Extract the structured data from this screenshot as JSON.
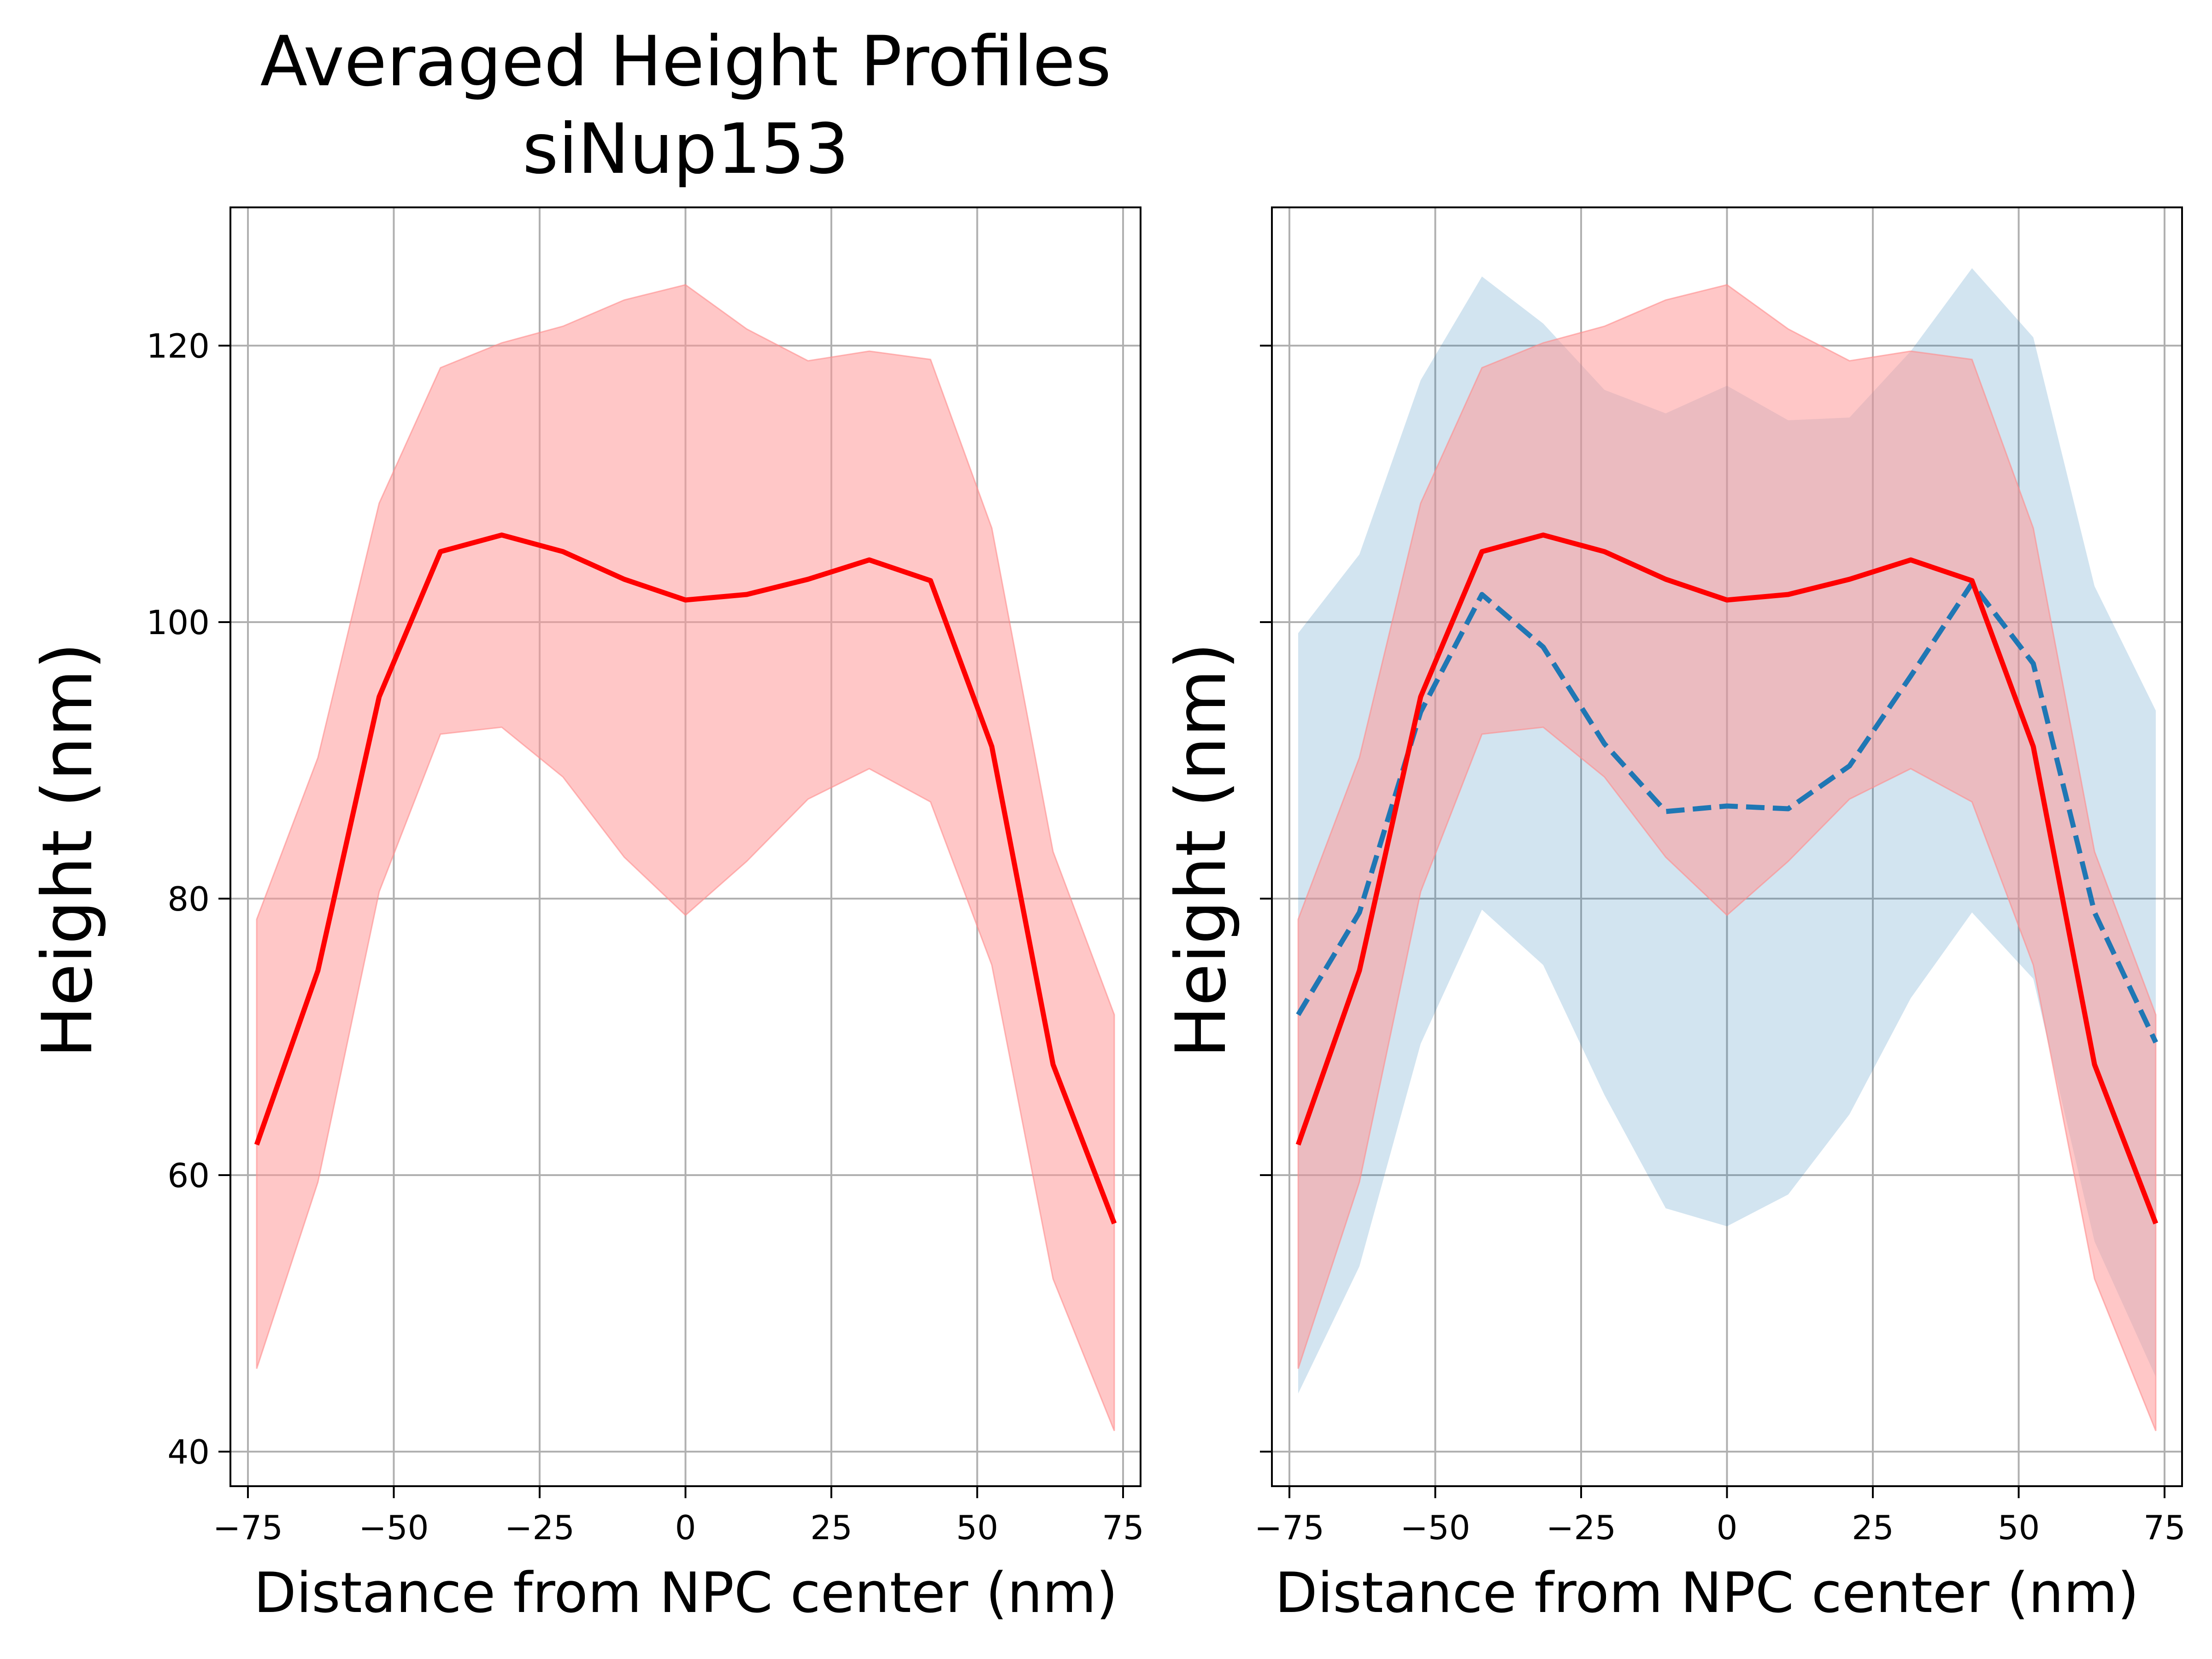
{
  "chart_data": [
    {
      "type": "line",
      "title": "Averaged Height Profiles\nsiNup153",
      "title_lines": [
        "Averaged Height Profiles",
        "siNup153"
      ],
      "xlabel": "Distance from NPC center (nm)",
      "ylabel": "Height (nm)",
      "xlim": [
        -78,
        78
      ],
      "ylim": [
        37.5,
        130
      ],
      "xticks": [
        -75,
        -50,
        -25,
        0,
        25,
        50,
        75
      ],
      "xtick_labels": [
        "−75",
        "−50",
        "−25",
        "0",
        "25",
        "50",
        "75"
      ],
      "yticks": [
        40,
        60,
        80,
        100,
        120
      ],
      "ytick_labels": [
        "40",
        "60",
        "80",
        "100",
        "120"
      ],
      "grid": true,
      "x": [
        -73.5,
        -63,
        -52.5,
        -42,
        -31.5,
        -21,
        -10.5,
        0,
        10.5,
        21,
        31.5,
        42,
        52.5,
        63,
        73.5
      ],
      "series": [
        {
          "color": "#ff0000",
          "style": "solid",
          "values": [
            62.2,
            74.8,
            94.6,
            105.1,
            106.3,
            105.1,
            103.1,
            101.6,
            102.0,
            103.1,
            104.5,
            103.0,
            91.0,
            68.0,
            56.5
          ],
          "band_lower": [
            46.0,
            59.5,
            80.5,
            91.9,
            92.4,
            88.8,
            83.0,
            78.8,
            82.7,
            87.2,
            89.4,
            87.0,
            75.2,
            52.5,
            41.5
          ],
          "band_upper": [
            78.5,
            90.2,
            108.6,
            118.4,
            120.2,
            121.4,
            123.3,
            124.4,
            121.2,
            118.9,
            119.6,
            119.0,
            106.8,
            83.4,
            71.6
          ],
          "band_color": "#ff9999"
        }
      ]
    },
    {
      "type": "line",
      "xlabel": "Distance from NPC center (nm)",
      "ylabel": "Height (nm)",
      "xlim": [
        -78,
        78
      ],
      "ylim": [
        37.5,
        130
      ],
      "xticks": [
        -75,
        -50,
        -25,
        0,
        25,
        50,
        75
      ],
      "xtick_labels": [
        "−75",
        "−50",
        "−25",
        "0",
        "25",
        "50",
        "75"
      ],
      "yticks": [
        40,
        60,
        80,
        100,
        120
      ],
      "ytick_labels": [
        "",
        "",
        "",
        "",
        ""
      ],
      "shared_y": true,
      "grid": true,
      "x": [
        -73.5,
        -63,
        -52.5,
        -42,
        -31.5,
        -21,
        -10.5,
        0,
        10.5,
        21,
        31.5,
        42,
        52.5,
        63,
        73.5
      ],
      "series": [
        {
          "color": "#1f77b4",
          "style": "dashed",
          "values": [
            71.6,
            79.0,
            93.5,
            102.0,
            98.2,
            91.2,
            86.3,
            86.7,
            86.5,
            89.6,
            96.1,
            102.8,
            97.0,
            79.0,
            69.6
          ],
          "band_lower": [
            44.2,
            53.4,
            69.5,
            79.2,
            75.2,
            65.8,
            57.6,
            56.3,
            58.6,
            64.4,
            72.8,
            79.0,
            74.2,
            55.2,
            45.4
          ],
          "band_upper": [
            99.2,
            104.9,
            117.5,
            125.0,
            121.6,
            116.8,
            115.1,
            117.1,
            114.6,
            114.8,
            119.6,
            125.6,
            120.6,
            102.6,
            93.6
          ],
          "band_color": "#1f77b4"
        },
        {
          "color": "#ff0000",
          "style": "solid",
          "values": [
            62.2,
            74.8,
            94.6,
            105.1,
            106.3,
            105.1,
            103.1,
            101.6,
            102.0,
            103.1,
            104.5,
            103.0,
            91.0,
            68.0,
            56.5
          ],
          "band_lower": [
            46.0,
            59.5,
            80.5,
            91.9,
            92.4,
            88.8,
            83.0,
            78.8,
            82.7,
            87.2,
            89.4,
            87.0,
            75.2,
            52.5,
            41.5
          ],
          "band_upper": [
            78.5,
            90.2,
            108.6,
            118.4,
            120.2,
            121.4,
            123.3,
            124.4,
            121.2,
            118.9,
            119.6,
            119.0,
            106.8,
            83.4,
            71.6
          ],
          "band_color": "#ff9999"
        }
      ]
    }
  ]
}
